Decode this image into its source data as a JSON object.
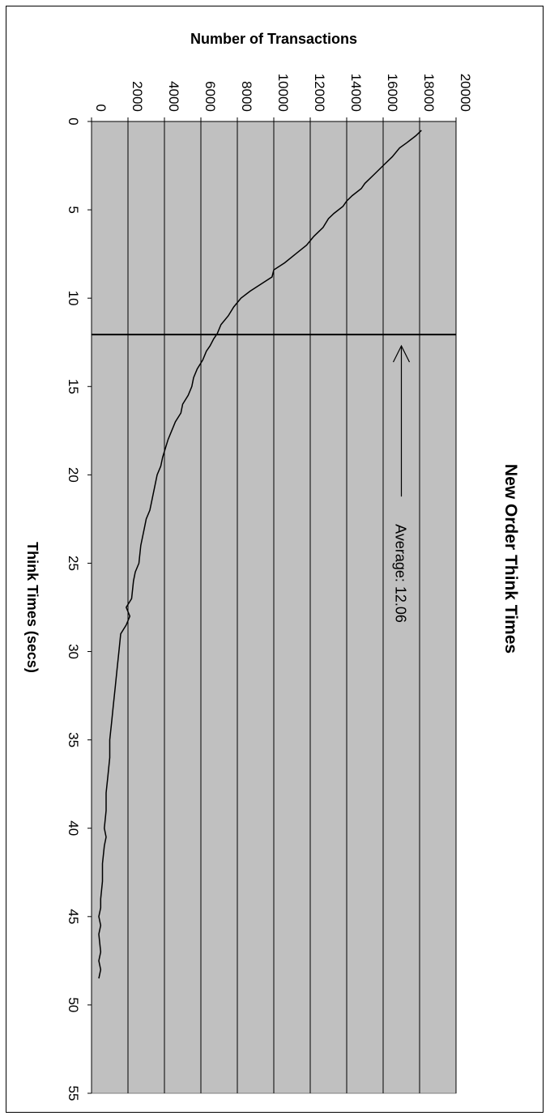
{
  "chart_data": {
    "type": "line",
    "orientation": "rotated-90-clockwise",
    "title": "New Order Think Times",
    "xlabel": "Think Times (secs)",
    "ylabel": "Number of Transactions",
    "xlim": [
      0,
      55
    ],
    "ylim": [
      0,
      20000
    ],
    "x_ticks": [
      "0",
      "5",
      "10",
      "15",
      "20",
      "25",
      "30",
      "35",
      "40",
      "45",
      "50",
      "55"
    ],
    "y_ticks": [
      "0",
      "2000",
      "4000",
      "6000",
      "8000",
      "10000",
      "12000",
      "14000",
      "16000",
      "18000",
      "20000"
    ],
    "grid": "horizontal major gridlines on transaction axis",
    "plot_background": "#c0c0c0",
    "legend": "none",
    "annotation": {
      "text": "Average: 12.06",
      "value": 12.06
    },
    "series": [
      {
        "x": [
          0.5,
          0.8,
          1.2,
          1.5,
          2.0,
          2.5,
          3.0,
          3.5,
          3.8,
          4.2,
          4.5,
          4.8,
          5.2,
          5.5,
          6.0,
          6.5,
          7.0,
          7.5,
          8.0,
          8.4,
          8.8,
          9.2,
          9.6,
          10.0,
          10.5,
          11.0,
          11.5,
          12.0,
          12.3,
          12.7,
          13.0,
          13.5,
          14.0,
          14.5,
          15.0,
          15.5,
          16.0,
          16.5,
          17.0,
          17.5,
          18.0,
          19.0,
          19.5,
          20.0,
          21.0,
          22.0,
          22.5,
          23.0,
          24.0,
          25.0,
          25.5,
          26.0,
          27.0,
          27.5,
          28.0,
          28.5,
          29.0,
          30.0,
          31.0,
          32.0,
          33.0,
          34.0,
          35.0,
          36.0,
          37.0,
          38.0,
          39.0,
          40.0,
          40.5,
          41.0,
          42.0,
          43.0,
          44.0,
          44.5,
          45.0,
          45.5,
          46.0,
          47.0,
          47.5,
          48.0,
          48.5
        ],
        "y": [
          18100,
          17800,
          17300,
          16900,
          16500,
          16000,
          15500,
          15000,
          14800,
          14300,
          14000,
          13800,
          13300,
          13000,
          12700,
          12200,
          11800,
          11200,
          10600,
          10000,
          9900,
          9300,
          8700,
          8200,
          7800,
          7500,
          7100,
          6900,
          6700,
          6500,
          6300,
          6100,
          5800,
          5600,
          5500,
          5300,
          5000,
          4900,
          4600,
          4400,
          4200,
          3900,
          3800,
          3600,
          3400,
          3200,
          3000,
          2900,
          2700,
          2600,
          2400,
          2300,
          2200,
          1900,
          2100,
          1900,
          1600,
          1500,
          1400,
          1300,
          1200,
          1100,
          1000,
          1000,
          900,
          800,
          800,
          700,
          800,
          700,
          600,
          600,
          500,
          500,
          400,
          500,
          400,
          500,
          400,
          500,
          400
        ]
      }
    ]
  }
}
